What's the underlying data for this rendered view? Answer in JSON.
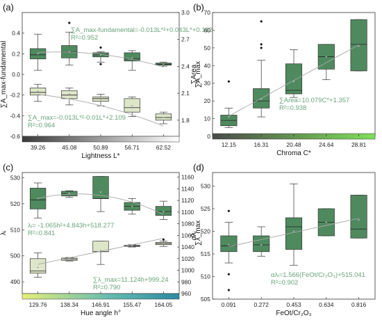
{
  "colors": {
    "dark_green": "#4e8a5e",
    "light_green": "#dde6c8",
    "text_green": "#6aa37a",
    "fit_line": "#a8a8a8",
    "a_bar": [
      "#3a3a3a",
      "#ffffff"
    ],
    "b_bar": [
      "#4a4a4a",
      "#7fe05a"
    ],
    "c_bar": [
      "#e6ee7a",
      "#66bcb0",
      "#2c8aa2"
    ]
  },
  "chart_data": [
    {
      "panel": "(a)",
      "type": "box",
      "title": "",
      "xlabel": "Lightness L*",
      "ylabel": "∑A_max-fundamental",
      "ylabel2": "∑A_max",
      "categories": [
        "39.26",
        "45.08",
        "50.89",
        "56.71",
        "62.52"
      ],
      "ylim": [
        -0.6,
        0.6
      ],
      "yticks": [
        "0.4",
        "0.2",
        "0.0",
        "-0.2",
        "-0.4",
        "-0.6"
      ],
      "y2lim": [
        1.62,
        3.0
      ],
      "y2ticks": [
        "3.0",
        "2.7",
        "2.4",
        "2.1",
        "1.8"
      ],
      "series": [
        {
          "axis": "left",
          "color": "dark",
          "equation": "∑A_max-fundamental=-0.013L*²+0.043L*+0.182",
          "r2": "R²=0.952",
          "fit": [
            -0.013,
            0.043,
            0.182
          ],
          "boxes": [
            {
              "min": 0.04,
              "q1": 0.15,
              "median": 0.19,
              "q3": 0.25,
              "max": 0.39,
              "mean": 0.2,
              "outliers": []
            },
            {
              "min": 0.09,
              "q1": 0.16,
              "median": 0.22,
              "q3": 0.28,
              "max": 0.41,
              "mean": 0.22,
              "outliers": [
                0.5
              ]
            },
            {
              "min": 0.12,
              "q1": 0.17,
              "median": 0.19,
              "q3": 0.21,
              "max": 0.22,
              "mean": 0.19,
              "outliers": [
                0.1,
                0.26
              ]
            },
            {
              "min": 0.04,
              "q1": 0.13,
              "median": 0.15,
              "q3": 0.21,
              "max": 0.23,
              "mean": 0.16,
              "outliers": []
            },
            {
              "min": 0.08,
              "q1": 0.09,
              "median": 0.1,
              "q3": 0.11,
              "max": 0.12,
              "mean": 0.1,
              "outliers": []
            }
          ]
        },
        {
          "axis": "right",
          "color": "light",
          "equation": "∑A_max=-0.013L*²-0.01L*+2.109",
          "r2": "R²=0.964",
          "fit": [
            -0.013,
            -0.01,
            2.109
          ],
          "boxes": [
            {
              "min": 2.01,
              "q1": 2.08,
              "median": 2.11,
              "q3": 2.16,
              "max": 2.2,
              "mean": 2.12,
              "outliers": []
            },
            {
              "min": 1.97,
              "q1": 2.04,
              "median": 2.08,
              "q3": 2.13,
              "max": 2.16,
              "mean": 2.09,
              "outliers": []
            },
            {
              "min": 1.96,
              "q1": 2.01,
              "median": 2.04,
              "q3": 2.06,
              "max": 2.09,
              "mean": 2.03,
              "outliers": []
            },
            {
              "min": 1.84,
              "q1": 1.89,
              "median": 1.94,
              "q3": 2.04,
              "max": 2.06,
              "mean": 1.96,
              "outliers": []
            },
            {
              "min": 1.76,
              "q1": 1.8,
              "median": 1.83,
              "q3": 1.87,
              "max": 1.89,
              "mean": 1.83,
              "outliers": []
            }
          ]
        }
      ]
    },
    {
      "panel": "(b)",
      "type": "box",
      "title": "",
      "xlabel": "Chroma C*",
      "ylabel": "∑Area",
      "categories": [
        "12.15",
        "16.31",
        "20.48",
        "24.64",
        "28.81"
      ],
      "ylim": [
        0,
        70
      ],
      "yticks": [
        "70",
        "60",
        "50",
        "40",
        "30",
        "20",
        "10",
        "0"
      ],
      "series": [
        {
          "axis": "left",
          "color": "dark",
          "equation": "∑Area=10.079C*+1.357",
          "r2": "R²=0.938",
          "fit": [
            10.079,
            1.357
          ],
          "boxes": [
            {
              "min": 5,
              "q1": 6,
              "median": 9,
              "q3": 12,
              "max": 16,
              "mean": 11,
              "outliers": [
                31
              ]
            },
            {
              "min": 11,
              "q1": 16,
              "median": 20,
              "q3": 27,
              "max": 43,
              "mean": 21,
              "outliers": [
                50,
                52,
                65
              ]
            },
            {
              "min": 22,
              "q1": 24,
              "median": 26,
              "q3": 41,
              "max": 49,
              "mean": 31,
              "outliers": []
            },
            {
              "min": 32,
              "q1": 38,
              "median": 45,
              "q3": 52,
              "max": 52,
              "mean": 45,
              "outliers": []
            },
            {
              "min": 37,
              "q1": 37,
              "median": 52,
              "q3": 66,
              "max": 66,
              "mean": 51,
              "outliers": []
            }
          ]
        }
      ]
    },
    {
      "panel": "(c)",
      "type": "box",
      "title": "",
      "xlabel": "Hue angle h°",
      "ylabel": "λᵢ",
      "ylabel2": "∑λ_max",
      "categories": [
        "129.76",
        "138.34",
        "146.91",
        "155.47",
        "164.05"
      ],
      "ylim": [
        485.5,
        532
      ],
      "yticks": [
        "530",
        "520",
        "510",
        "500",
        "490"
      ],
      "y2lim": [
        960,
        1168
      ],
      "y2ticks": [
        "1160",
        "1140",
        "1120",
        "1100",
        "1080",
        "1060",
        "1040",
        "1020",
        "1000",
        "980",
        "960"
      ],
      "series": [
        {
          "axis": "left",
          "color": "dark",
          "equation": "λᵢ= -1.065h²+4.843h+518.277",
          "r2": "R²=0.841",
          "fit": [
            -1.065,
            4.843,
            518.277
          ],
          "boxes": [
            {
              "min": 514.5,
              "q1": 518,
              "median": 521.5,
              "q3": 526,
              "max": 528,
              "mean": 522,
              "outliers": []
            },
            {
              "min": 522.5,
              "q1": 523,
              "median": 523.8,
              "q3": 524.8,
              "max": 525,
              "mean": 524,
              "outliers": []
            },
            {
              "min": 517,
              "q1": 522,
              "median": 522,
              "q3": 530.5,
              "max": 530.5,
              "mean": 524.5,
              "outliers": []
            },
            {
              "min": 516,
              "q1": 517.5,
              "median": 519,
              "q3": 520.5,
              "max": 522,
              "mean": 519,
              "outliers": []
            },
            {
              "min": 514,
              "q1": 515.5,
              "median": 517,
              "q3": 519,
              "max": 521,
              "mean": 517,
              "outliers": []
            }
          ]
        },
        {
          "axis": "right",
          "color": "light",
          "equation": "∑λ_max=11.124h+999.24",
          "r2": "R²=0.790",
          "fit": [
            11.124,
            999.24
          ],
          "boxes": [
            {
              "min": 988,
              "q1": 995,
              "median": 999,
              "q3": 1020,
              "max": 1030,
              "mean": 1005,
              "outliers": []
            },
            {
              "min": 1016,
              "q1": 1017,
              "median": 1019,
              "q3": 1021,
              "max": 1022,
              "mean": 1019,
              "outliers": []
            },
            {
              "min": 1010,
              "q1": 1032,
              "median": 1032,
              "q3": 1050,
              "max": 1050,
              "mean": 1034,
              "outliers": []
            },
            {
              "min": 1040,
              "q1": 1041,
              "median": 1042,
              "q3": 1043,
              "max": 1044,
              "mean": 1042,
              "outliers": []
            },
            {
              "min": 1041,
              "q1": 1044,
              "median": 1046,
              "q3": 1048,
              "max": 1050,
              "mean": 1046,
              "outliers": [
                1053
              ]
            }
          ]
        }
      ]
    },
    {
      "panel": "(d)",
      "type": "box",
      "title": "",
      "xlabel": "FeOt/Cr₂O₃",
      "ylabel": "αλᵢ",
      "categories": [
        "0.091",
        "0.272",
        "0.453",
        "0.634",
        "0.816"
      ],
      "ylim": [
        505,
        533
      ],
      "yticks": [
        "530",
        "525",
        "520",
        "515",
        "510",
        "505"
      ],
      "series": [
        {
          "axis": "left",
          "color": "dark",
          "equation": "αλᵢ=1.566(FeOt/Cr₂O₃)+515.041",
          "r2": "R²=0.902",
          "fit": [
            1.566,
            515.041
          ],
          "boxes": [
            {
              "min": 513,
              "q1": 515.5,
              "median": 516.8,
              "q3": 519,
              "max": 522,
              "mean": 517,
              "outliers": [
                524.5,
                510.5,
                507
              ]
            },
            {
              "min": 514.5,
              "q1": 515.5,
              "median": 517,
              "q3": 519,
              "max": 521,
              "mean": 517,
              "outliers": []
            },
            {
              "min": 512.5,
              "q1": 516,
              "median": 521,
              "q3": 523,
              "max": 530.5,
              "mean": 520,
              "outliers": []
            },
            {
              "min": 519,
              "q1": 519,
              "median": 522,
              "q3": 525,
              "max": 525,
              "mean": 522,
              "outliers": []
            },
            {
              "min": 518.5,
              "q1": 518.5,
              "median": 520.5,
              "q3": 528,
              "max": 528,
              "mean": 522.5,
              "outliers": []
            }
          ]
        }
      ]
    }
  ]
}
